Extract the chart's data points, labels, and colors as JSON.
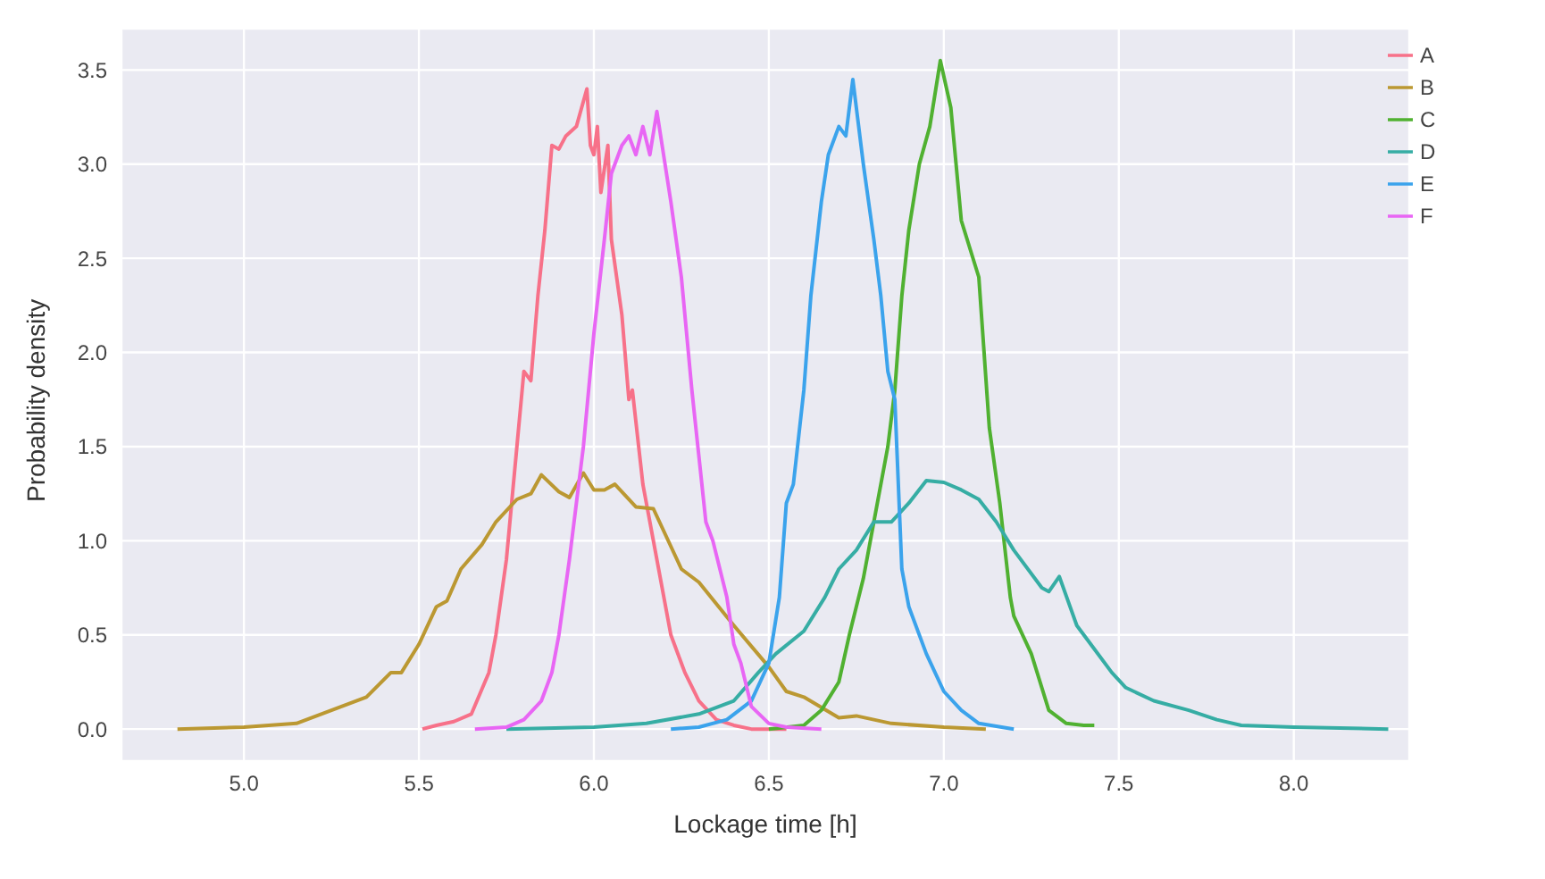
{
  "chart_data": {
    "type": "line",
    "xlabel": "Lockage time [h]",
    "ylabel": "Probability density",
    "xlim": [
      4.65,
      8.33
    ],
    "ylim": [
      -0.17,
      3.72
    ],
    "xticks": [
      {
        "value": 5,
        "label": "5.0"
      },
      {
        "value": 5.5,
        "label": "5.5"
      },
      {
        "value": 6,
        "label": "6.0"
      },
      {
        "value": 6.5,
        "label": "6.5"
      },
      {
        "value": 7,
        "label": "7.0"
      },
      {
        "value": 7.5,
        "label": "7.5"
      },
      {
        "value": 8,
        "label": "8.0"
      }
    ],
    "yticks": [
      {
        "value": 0,
        "label": "0.0"
      },
      {
        "value": 0.5,
        "label": "0.5"
      },
      {
        "value": 1,
        "label": "1.0"
      },
      {
        "value": 1.5,
        "label": "1.5"
      },
      {
        "value": 2,
        "label": "2.0"
      },
      {
        "value": 2.5,
        "label": "2.5"
      },
      {
        "value": 3,
        "label": "3.0"
      },
      {
        "value": 3.5,
        "label": "3.5"
      }
    ],
    "grid": true,
    "legend": "top right",
    "marker": "none",
    "line_style": "solid",
    "series": [
      {
        "name": "A",
        "color": "#f77189",
        "x": [
          5.51,
          5.55,
          5.6,
          5.65,
          5.7,
          5.72,
          5.75,
          5.78,
          5.8,
          5.82,
          5.84,
          5.86,
          5.88,
          5.9,
          5.92,
          5.95,
          5.98,
          5.99,
          6.0,
          6.01,
          6.02,
          6.04,
          6.05,
          6.08,
          6.1,
          6.11,
          6.14,
          6.18,
          6.22,
          6.26,
          6.3,
          6.35,
          6.4,
          6.45,
          6.55
        ],
        "values": [
          0,
          0.02,
          0.04,
          0.08,
          0.3,
          0.5,
          0.9,
          1.5,
          1.9,
          1.85,
          2.3,
          2.65,
          3.1,
          3.08,
          3.15,
          3.2,
          3.4,
          3.1,
          3.05,
          3.2,
          2.85,
          3.1,
          2.6,
          2.2,
          1.75,
          1.8,
          1.3,
          0.9,
          0.5,
          0.3,
          0.15,
          0.05,
          0.02,
          0,
          0
        ]
      },
      {
        "name": "B",
        "color": "#bb9832",
        "x": [
          4.81,
          5.0,
          5.15,
          5.25,
          5.35,
          5.42,
          5.45,
          5.5,
          5.55,
          5.58,
          5.62,
          5.68,
          5.72,
          5.78,
          5.82,
          5.85,
          5.9,
          5.93,
          5.97,
          6.0,
          6.03,
          6.06,
          6.12,
          6.17,
          6.25,
          6.3,
          6.4,
          6.5,
          6.55,
          6.6,
          6.7,
          6.75,
          6.85,
          7.0,
          7.12
        ],
        "values": [
          0,
          0.01,
          0.03,
          0.1,
          0.17,
          0.3,
          0.3,
          0.45,
          0.65,
          0.68,
          0.85,
          0.98,
          1.1,
          1.22,
          1.25,
          1.35,
          1.26,
          1.23,
          1.36,
          1.27,
          1.27,
          1.3,
          1.18,
          1.17,
          0.85,
          0.78,
          0.55,
          0.33,
          0.2,
          0.17,
          0.06,
          0.07,
          0.03,
          0.01,
          0
        ]
      },
      {
        "name": "C",
        "color": "#50b131",
        "x": [
          6.5,
          6.6,
          6.65,
          6.7,
          6.73,
          6.77,
          6.8,
          6.84,
          6.86,
          6.88,
          6.9,
          6.93,
          6.96,
          6.99,
          7.02,
          7.05,
          7.1,
          7.13,
          7.16,
          7.19,
          7.2,
          7.25,
          7.3,
          7.35,
          7.4,
          7.43
        ],
        "values": [
          0,
          0.02,
          0.1,
          0.25,
          0.5,
          0.8,
          1.1,
          1.5,
          1.8,
          2.3,
          2.65,
          3.0,
          3.2,
          3.55,
          3.3,
          2.7,
          2.4,
          1.6,
          1.2,
          0.7,
          0.6,
          0.4,
          0.1,
          0.03,
          0.02,
          0.02
        ]
      },
      {
        "name": "D",
        "color": "#36ada4",
        "x": [
          5.75,
          6.0,
          6.15,
          6.3,
          6.4,
          6.47,
          6.52,
          6.6,
          6.66,
          6.7,
          6.75,
          6.8,
          6.85,
          6.9,
          6.95,
          7.0,
          7.05,
          7.1,
          7.15,
          7.2,
          7.28,
          7.3,
          7.33,
          7.38,
          7.42,
          7.48,
          7.52,
          7.6,
          7.7,
          7.78,
          7.85,
          8.0,
          8.27
        ],
        "values": [
          0,
          0.01,
          0.03,
          0.08,
          0.15,
          0.3,
          0.4,
          0.52,
          0.7,
          0.85,
          0.95,
          1.1,
          1.1,
          1.2,
          1.32,
          1.31,
          1.27,
          1.22,
          1.1,
          0.95,
          0.75,
          0.73,
          0.81,
          0.55,
          0.45,
          0.3,
          0.22,
          0.15,
          0.1,
          0.05,
          0.02,
          0.01,
          0
        ]
      },
      {
        "name": "E",
        "color": "#3ba3ec",
        "x": [
          6.22,
          6.3,
          6.38,
          6.45,
          6.5,
          6.53,
          6.55,
          6.57,
          6.6,
          6.62,
          6.65,
          6.67,
          6.7,
          6.72,
          6.74,
          6.77,
          6.8,
          6.82,
          6.84,
          6.86,
          6.88,
          6.9,
          6.95,
          7.0,
          7.05,
          7.1,
          7.2
        ],
        "values": [
          0,
          0.01,
          0.05,
          0.15,
          0.35,
          0.7,
          1.2,
          1.3,
          1.8,
          2.3,
          2.8,
          3.05,
          3.2,
          3.15,
          3.45,
          3.0,
          2.6,
          2.3,
          1.9,
          1.75,
          0.85,
          0.65,
          0.4,
          0.2,
          0.1,
          0.03,
          0
        ]
      },
      {
        "name": "F",
        "color": "#e866f4",
        "x": [
          5.66,
          5.75,
          5.8,
          5.85,
          5.88,
          5.9,
          5.93,
          5.97,
          6.0,
          6.03,
          6.05,
          6.08,
          6.1,
          6.12,
          6.14,
          6.16,
          6.18,
          6.22,
          6.25,
          6.28,
          6.32,
          6.34,
          6.38,
          6.4,
          6.42,
          6.45,
          6.5,
          6.55,
          6.65
        ],
        "values": [
          0,
          0.01,
          0.05,
          0.15,
          0.3,
          0.5,
          0.9,
          1.5,
          2.1,
          2.6,
          2.95,
          3.1,
          3.15,
          3.05,
          3.2,
          3.05,
          3.28,
          2.8,
          2.4,
          1.8,
          1.1,
          1.0,
          0.7,
          0.45,
          0.35,
          0.12,
          0.03,
          0.01,
          0
        ]
      }
    ]
  }
}
